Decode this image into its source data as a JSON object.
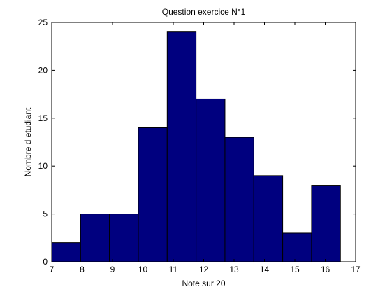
{
  "chart_data": {
    "type": "bar",
    "title": "Question exercice N°1",
    "xlabel": "Note sur 20",
    "ylabel": "Nombre d etudiant",
    "xlim": [
      7,
      17
    ],
    "ylim": [
      0,
      25
    ],
    "xticks": [
      7,
      8,
      9,
      10,
      11,
      12,
      13,
      14,
      15,
      16,
      17
    ],
    "yticks": [
      0,
      5,
      10,
      15,
      20,
      25
    ],
    "bins": [
      {
        "x0": 7.0,
        "x1": 7.95,
        "value": 2
      },
      {
        "x0": 7.95,
        "x1": 8.9,
        "value": 5
      },
      {
        "x0": 8.9,
        "x1": 9.85,
        "value": 5
      },
      {
        "x0": 9.85,
        "x1": 10.8,
        "value": 14
      },
      {
        "x0": 10.8,
        "x1": 11.75,
        "value": 24
      },
      {
        "x0": 11.75,
        "x1": 12.7,
        "value": 17
      },
      {
        "x0": 12.7,
        "x1": 13.65,
        "value": 13
      },
      {
        "x0": 13.65,
        "x1": 14.6,
        "value": 9
      },
      {
        "x0": 14.6,
        "x1": 15.55,
        "value": 3
      },
      {
        "x0": 15.55,
        "x1": 16.5,
        "value": 8
      }
    ],
    "grid": false,
    "bar_color": "#00007f",
    "edge_color": "#000000"
  }
}
